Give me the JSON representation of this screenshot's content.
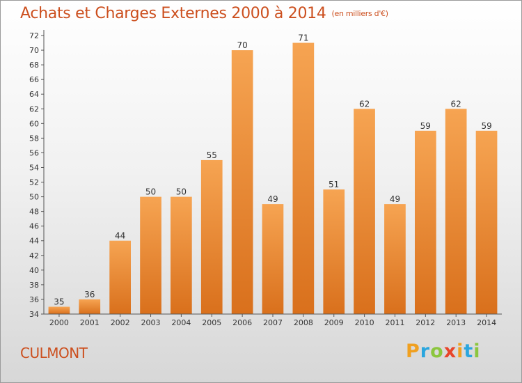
{
  "chart_data": {
    "type": "bar",
    "title": "Achats et Charges Externes 2000 à 2014",
    "subtitle": "(en milliers d'€)",
    "categories": [
      "2000",
      "2001",
      "2002",
      "2003",
      "2004",
      "2005",
      "2006",
      "2007",
      "2008",
      "2009",
      "2010",
      "2011",
      "2012",
      "2013",
      "2014"
    ],
    "values": [
      35,
      36,
      44,
      50,
      50,
      55,
      70,
      49,
      71,
      51,
      62,
      49,
      59,
      62,
      59
    ],
    "ylim": [
      34,
      72
    ],
    "ytick_step": 2,
    "grid": false,
    "bar_color": "#f08a2c",
    "bar_color_light": "#f6a452",
    "bar_color_dark": "#d9701c"
  },
  "footer": {
    "town": "CULMONT",
    "logo_letters": [
      "P",
      "r",
      "o",
      "x",
      "i",
      "t",
      "i"
    ],
    "logo_colors": [
      "#f0a020",
      "#2aa6de",
      "#8cc63e",
      "#e8452a",
      "#f0a020",
      "#2aa6de",
      "#8cc63e"
    ]
  },
  "colors": {
    "title": "#cc4f1e",
    "axis": "#555555"
  }
}
